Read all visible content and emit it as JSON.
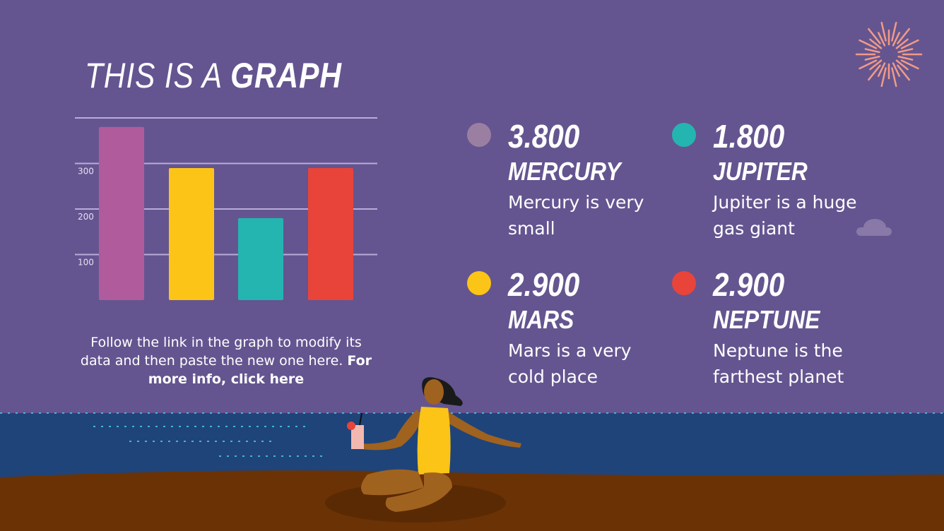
{
  "title": {
    "light": "THIS IS A ",
    "bold": "GRAPH"
  },
  "caption": {
    "text": "Follow the link in the graph to modify its data and then paste the new one here. ",
    "link": "For more info, click here"
  },
  "chart_data": {
    "type": "bar",
    "categories": [
      "Mercury",
      "Mars",
      "Jupiter",
      "Neptune"
    ],
    "values": [
      380,
      290,
      180,
      290
    ],
    "colors": [
      "#b05c9c",
      "#fcc417",
      "#24b5b0",
      "#e8443a"
    ],
    "yticks": [
      "100",
      "200",
      "300"
    ],
    "ylim": [
      0,
      400
    ],
    "grid": true
  },
  "stats": [
    {
      "value": "3.800",
      "name": "MERCURY",
      "desc": "Mercury is very small",
      "color": "#9b7fa3"
    },
    {
      "value": "1.800",
      "name": "JUPITER",
      "desc": "Jupiter is a huge gas giant",
      "color": "#24b5b0"
    },
    {
      "value": "2.900",
      "name": "MARS",
      "desc": "Mars is a very cold place",
      "color": "#fcc417"
    },
    {
      "value": "2.900",
      "name": "NEPTUNE",
      "desc": "Neptune is the farthest planet",
      "color": "#e8443a"
    }
  ],
  "colors": {
    "background": "#645590",
    "sea": "#1f4479",
    "sand": "#6b3206"
  }
}
